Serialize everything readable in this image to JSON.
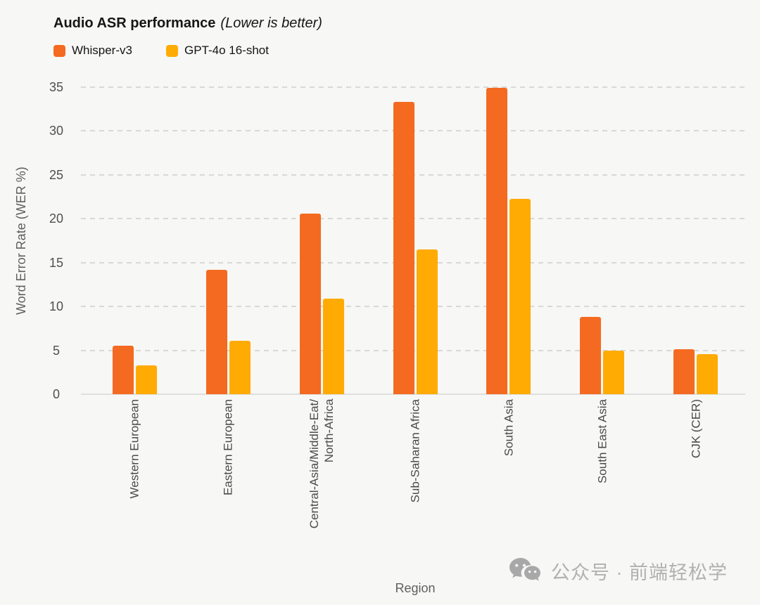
{
  "title": {
    "main": "Audio ASR performance",
    "note": "(Lower is better)"
  },
  "watermark": {
    "icon": "wechat-icon",
    "text": "公众号 · 前端轻松学"
  },
  "colors": {
    "background": "#f7f7f5",
    "gridline": "#d8d8d6",
    "axis_line": "#dfdfdd",
    "title_text": "#161616",
    "axis_text": "#5f5f5f",
    "tick_text": "#4f4f4f",
    "watermark_text": "#b1b1b1"
  },
  "chart_data": {
    "type": "bar",
    "title": "Audio ASR performance (Lower is better)",
    "categories": [
      "Western European",
      "Eastern European",
      "Central-Asia/Middle-Eat/\nNorth-Africa",
      "Sub-Saharan Africa",
      "South Asia",
      "South East Asia",
      "CJK (CER)"
    ],
    "series": [
      {
        "name": "Whisper-v3",
        "color": "#f46a21",
        "values": [
          5.5,
          14.2,
          20.6,
          33.3,
          34.9,
          8.8,
          5.1
        ]
      },
      {
        "name": "GPT-4o 16-shot",
        "color": "#ffab03",
        "values": [
          3.3,
          6.1,
          10.9,
          16.5,
          22.3,
          5.0,
          4.6
        ]
      }
    ],
    "xlabel": "Region",
    "ylabel": "Word Error Rate (WER %)",
    "ylim": [
      0,
      35
    ],
    "yticks": [
      0,
      5,
      10,
      15,
      20,
      25,
      30,
      35
    ],
    "grid": "horizontal-dashed",
    "legend_position": "top-left"
  }
}
